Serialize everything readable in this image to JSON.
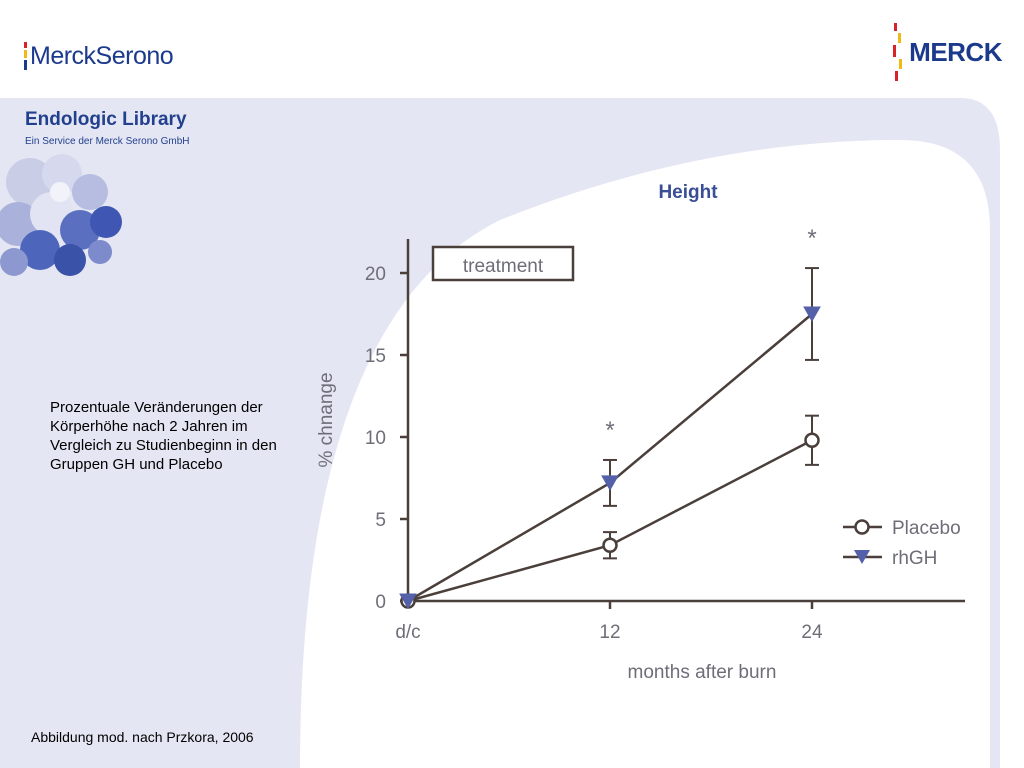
{
  "header": {
    "logo_left": "MerckSerono",
    "logo_right": "MERCK",
    "library_title": "Endologic Library",
    "library_subtitle": "Ein Service der Merck Serono GmbH"
  },
  "caption": "Prozentuale Veränderungen der Körperhöhe nach 2 Jahren im Vergleich zu Studienbeginn in den Gruppen GH und Placebo",
  "footnote": "Abbildung mod. nach Przkora, 2006",
  "colors": {
    "brand_blue": "#1c3a8c",
    "panel": "#e4e7f3",
    "line": "#4a3f3a",
    "rhgh_marker": "#5461a8",
    "text_gray": "#6e6e78",
    "title_blue": "#3a4e97",
    "logo_red": "#d8232a",
    "logo_yellow": "#f2b817"
  },
  "chart_data": {
    "type": "line",
    "title": "Height",
    "xlabel": "months after burn",
    "ylabel": "% chnange",
    "categories": [
      "d/c",
      "12",
      "24"
    ],
    "ylim": [
      0,
      22
    ],
    "yticks": [
      0,
      5,
      10,
      15,
      20
    ],
    "grid": false,
    "legend_position": "right",
    "treatment_label": "treatment",
    "series": [
      {
        "name": "Placebo",
        "marker": "open-circle",
        "values": [
          0,
          3.4,
          9.8
        ],
        "error": [
          0,
          0.8,
          1.5
        ]
      },
      {
        "name": "rhGH",
        "marker": "filled-down-triangle",
        "values": [
          0,
          7.2,
          17.5
        ],
        "error": [
          0,
          1.4,
          2.8
        ]
      }
    ],
    "significance": [
      {
        "category": "12",
        "label": "*"
      },
      {
        "category": "24",
        "label": "*"
      }
    ]
  }
}
